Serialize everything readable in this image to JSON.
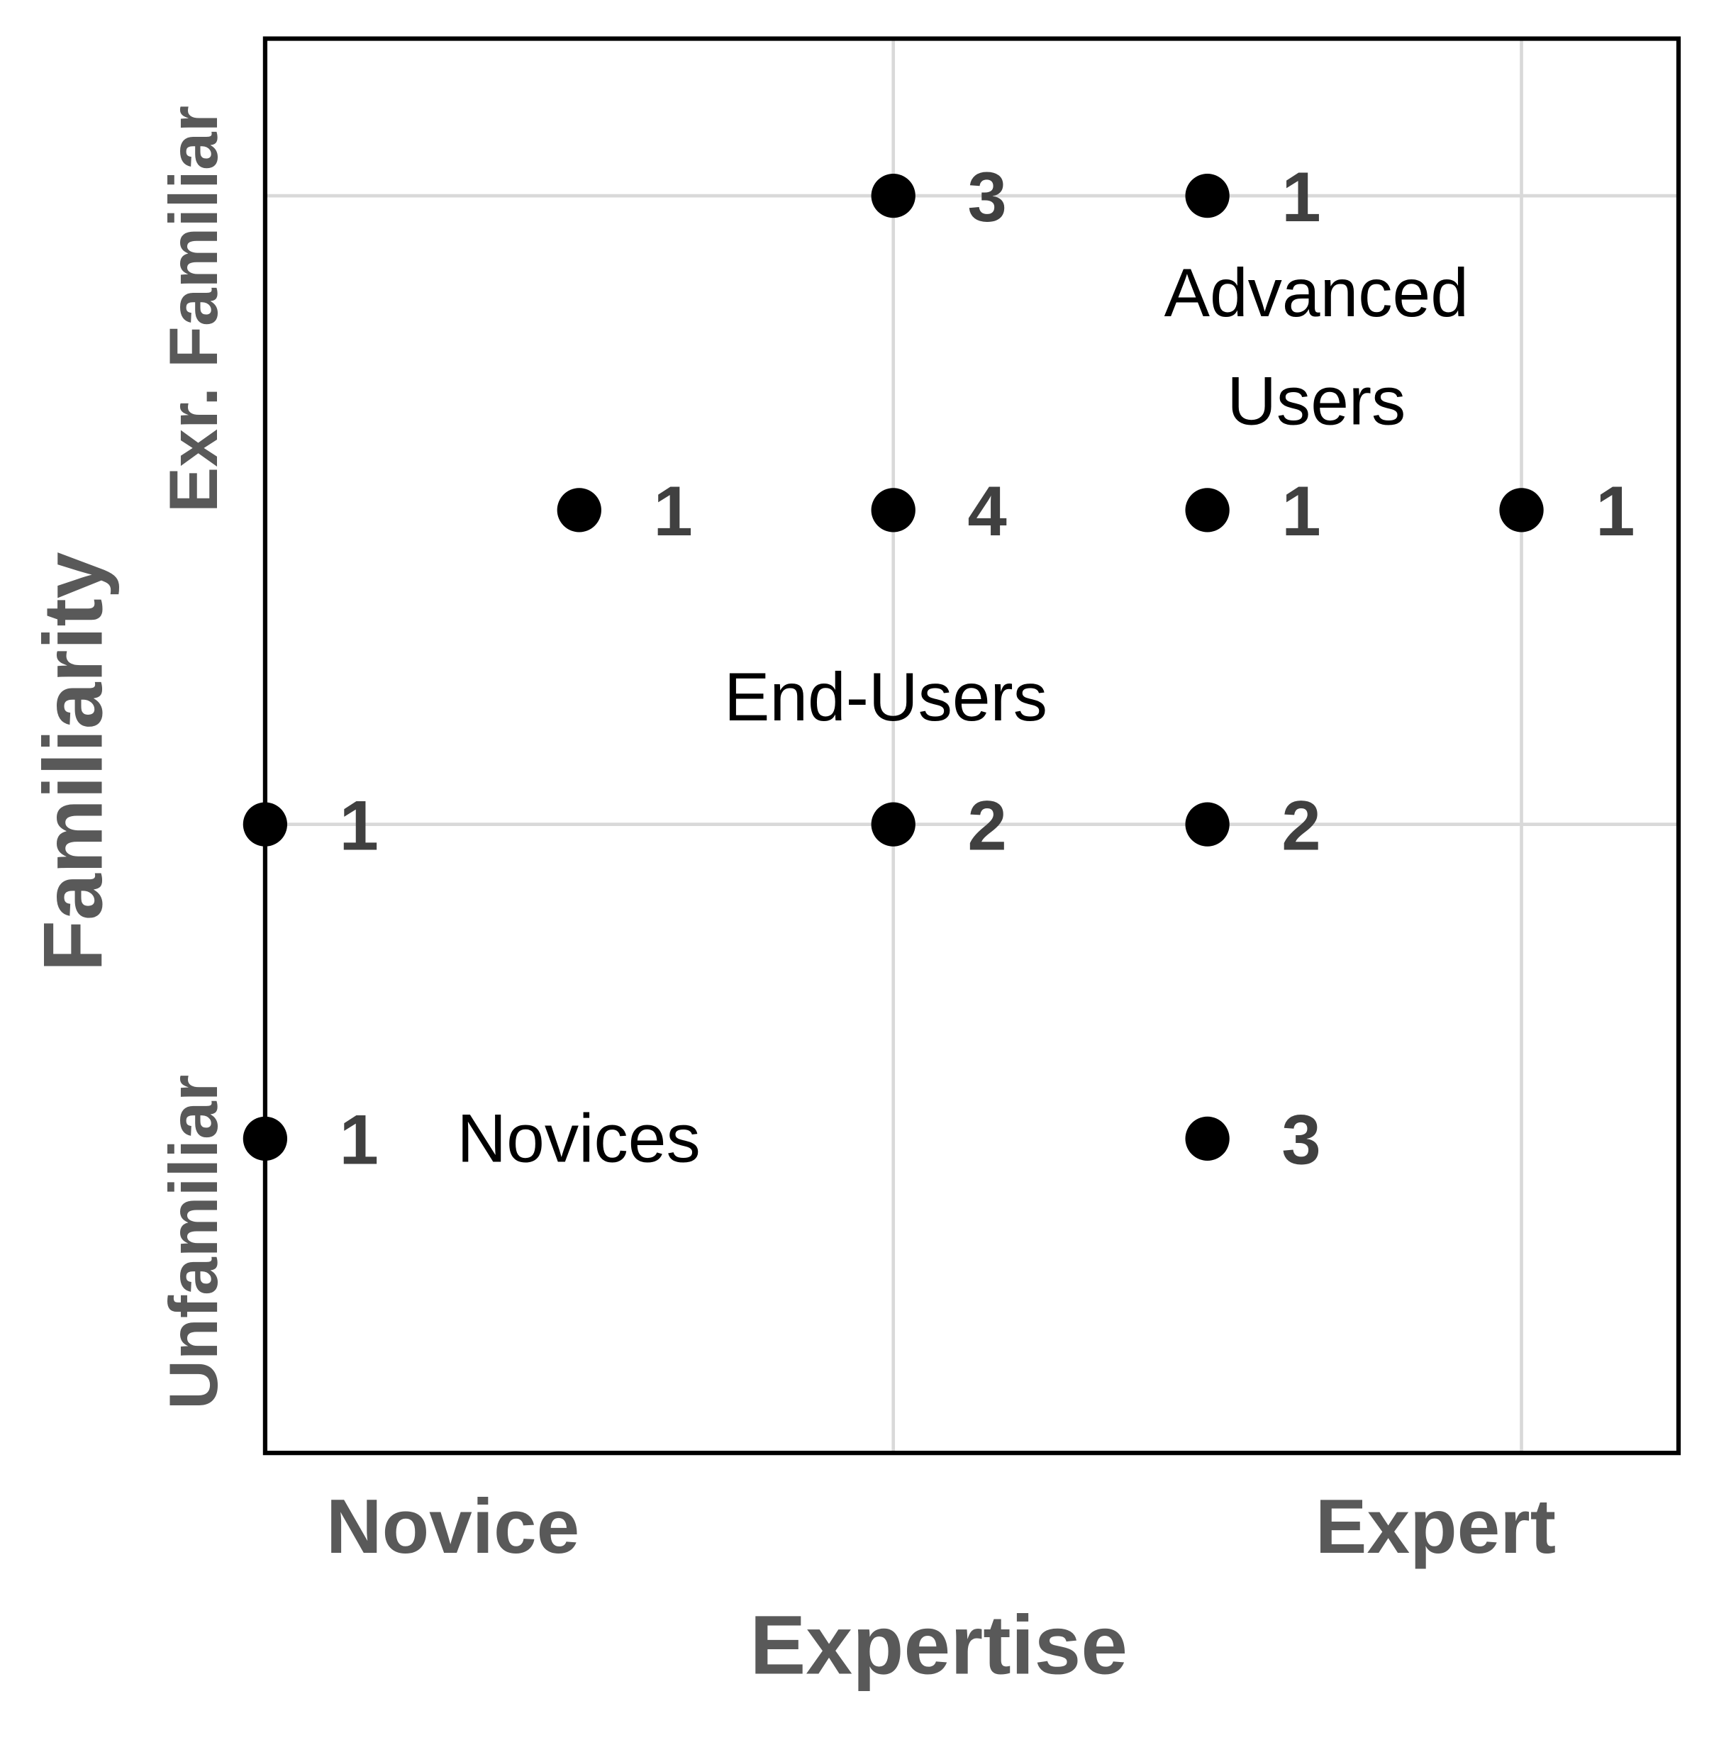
{
  "chart_data": {
    "type": "scatter",
    "x_label": "Expertise",
    "y_label": "Familiarity",
    "x_end_labels": [
      "Novice",
      "Expert"
    ],
    "y_end_labels": [
      "Unfamiliar",
      "Exr. Familiar"
    ],
    "xlim": [
      0,
      4.5
    ],
    "ylim": [
      0,
      4.5
    ],
    "x_grid": [
      2,
      4
    ],
    "y_grid": [
      2,
      4
    ],
    "color": "#000000",
    "x": [
      0,
      0,
      1,
      2,
      2,
      2,
      3,
      3,
      3,
      3,
      4
    ],
    "values": [
      1,
      2,
      3,
      4,
      3,
      2,
      4,
      3,
      2,
      1,
      3
    ],
    "counts": [
      1,
      1,
      1,
      3,
      4,
      2,
      1,
      1,
      2,
      3,
      1
    ],
    "annotations": [
      {
        "lines": [
          "Advanced",
          "Users"
        ]
      },
      {
        "lines": [
          "End-Users"
        ]
      },
      {
        "lines": [
          "Novices"
        ]
      }
    ]
  }
}
